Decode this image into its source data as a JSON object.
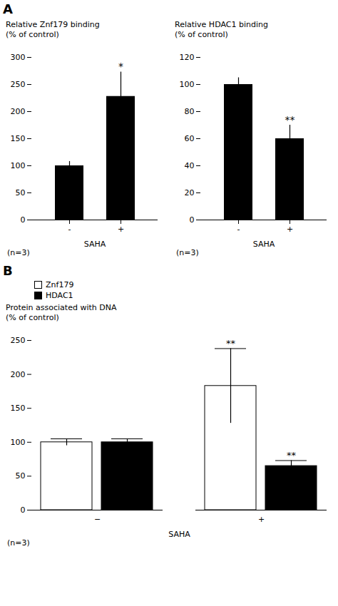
{
  "chart_data": [
    {
      "type": "bar",
      "title": "A",
      "categories": [
        "-",
        "+"
      ],
      "values": [
        100,
        228
      ],
      "errors": [
        8,
        45
      ],
      "color": "#000000",
      "ylabel": "Relative Znf179 binding\n(% of control)",
      "xlabel": "SAHA",
      "ylim": [
        0,
        300
      ],
      "yticks": [
        0,
        50,
        100,
        150,
        200,
        250,
        300
      ],
      "annotations": [
        {
          "text": "*",
          "category": "+"
        },
        "(n=3)"
      ]
    },
    {
      "type": "bar",
      "categories": [
        "-",
        "+"
      ],
      "values": [
        100,
        60
      ],
      "errors": [
        5,
        10
      ],
      "color": "#000000",
      "ylabel": "Relative HDAC1 binding\n(% of control)",
      "xlabel": "SAHA",
      "ylim": [
        0,
        120
      ],
      "yticks": [
        0,
        20,
        40,
        60,
        80,
        100,
        120
      ],
      "annotations": [
        {
          "text": "**",
          "category": "+"
        },
        "(n=3)"
      ]
    },
    {
      "type": "bar",
      "title": "B",
      "categories": [
        "−",
        "+"
      ],
      "series": [
        {
          "name": "Znf179",
          "color": "#ffffff",
          "values": [
            100,
            183
          ],
          "errors": [
            5,
            55
          ]
        },
        {
          "name": "HDAC1",
          "color": "#000000",
          "values": [
            100,
            65
          ],
          "errors": [
            5,
            8
          ]
        }
      ],
      "legend": "upper left",
      "ylabel": "Protein associated with DNA\n(% of control)",
      "xlabel": "SAHA",
      "ylim": [
        0,
        250
      ],
      "yticks": [
        0,
        50,
        100,
        150,
        200,
        250
      ],
      "annotations": [
        {
          "text": "**",
          "category": "+",
          "series": "Znf179"
        },
        {
          "text": "**",
          "category": "+",
          "series": "HDAC1"
        },
        "(n=3)"
      ]
    }
  ]
}
